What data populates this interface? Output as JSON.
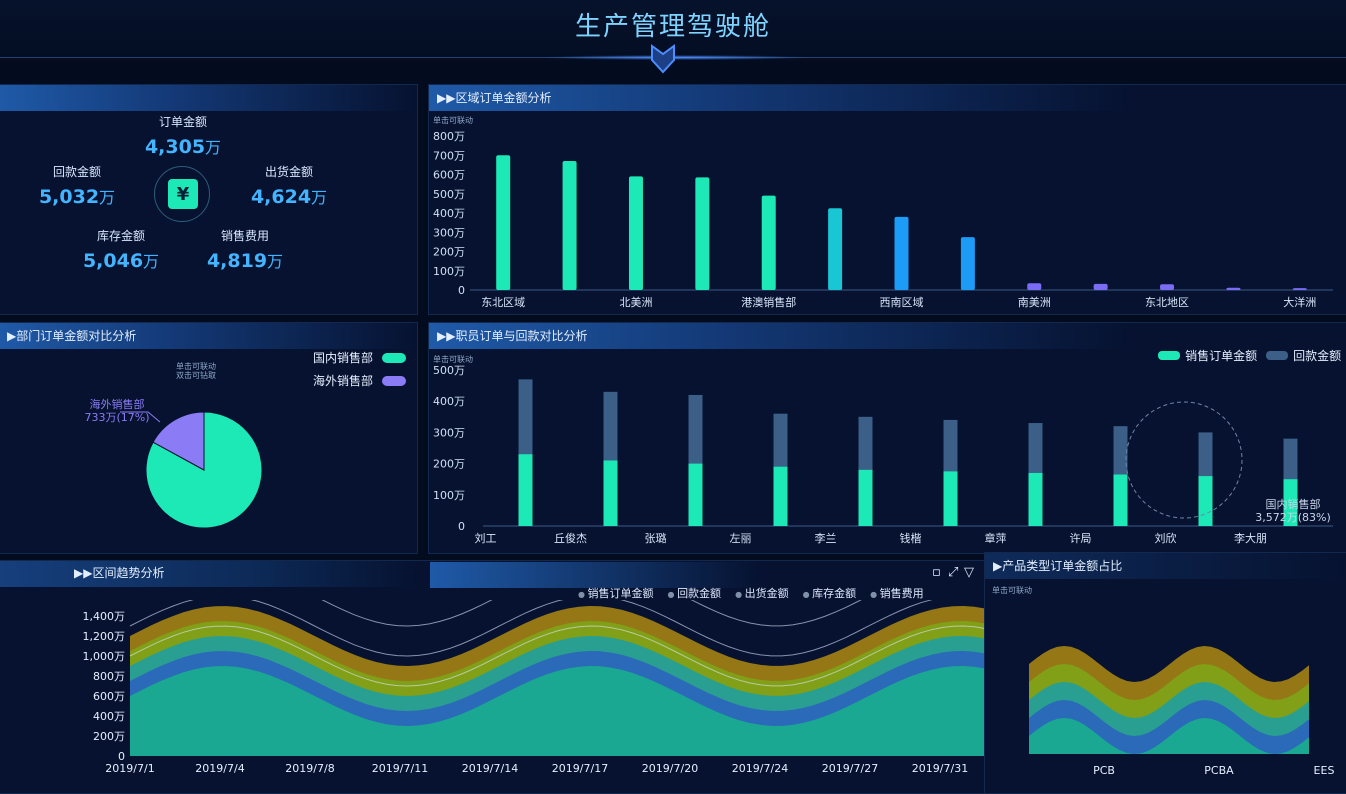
{
  "header": {
    "title": "生产管理驾驶舱"
  },
  "kpi": {
    "items": [
      {
        "label": "订单金额",
        "value": "4,305",
        "unit": "万"
      },
      {
        "label": "回款金额",
        "value": "5,032",
        "unit": "万"
      },
      {
        "label": "出货金额",
        "value": "4,624",
        "unit": "万"
      },
      {
        "label": "库存金额",
        "value": "5,046",
        "unit": "万"
      },
      {
        "label": "销售费用",
        "value": "4,819",
        "unit": "万"
      }
    ],
    "icon": "yen-wallet-icon",
    "icon_glyph": "¥"
  },
  "panels": {
    "region": {
      "title": "▶▶区域订单金额分析",
      "hint": "单击可联动"
    },
    "dept": {
      "title": "▶部门订单金额对比分析",
      "hint1": "单击可联动",
      "hint2": "双击可钻取"
    },
    "staff": {
      "title": "▶▶职员订单与回款对比分析",
      "hint": "单击可联动"
    },
    "trend": {
      "title": "▶▶区间趋势分析"
    },
    "product": {
      "title": "▶产品类型订单金额占比",
      "hint": "单击可联动"
    }
  },
  "colors": {
    "accent": "#1de9b6",
    "blue": "#1c9cf6",
    "purple": "#7b6cf6",
    "slate": "#3b5f86"
  },
  "chart_data": [
    {
      "type": "bar",
      "title": "区域订单金额分析",
      "categories": [
        "东北区域",
        "",
        "北美洲",
        "",
        "港澳销售部",
        "",
        "西南区域",
        "",
        "南美洲",
        "",
        "东北地区",
        "",
        "大洋洲"
      ],
      "values": [
        700,
        670,
        590,
        585,
        490,
        425,
        380,
        275,
        35,
        32,
        30,
        12,
        10
      ],
      "yticks": [
        "0",
        "100万",
        "200万",
        "300万",
        "400万",
        "500万",
        "600万",
        "700万",
        "800万"
      ],
      "ylim": [
        0,
        800
      ]
    },
    {
      "type": "pie",
      "title": "部门订单金额对比分析",
      "legend": [
        "国内销售部",
        "海外销售部"
      ],
      "slices": [
        {
          "name": "国内销售部",
          "value": 3572,
          "label": "3,572万(83%)"
        },
        {
          "name": "海外销售部",
          "value": 733,
          "label": "733万(17%)"
        }
      ],
      "callout_name": "海外销售部",
      "callout_value": "733万(17%)",
      "callout2_name": "国内销售部",
      "callout2_value": "3,572万(83%)"
    },
    {
      "type": "bar",
      "title": "职员订单与回款对比分析",
      "legend": [
        "销售订单金额",
        "回款金额"
      ],
      "categories": [
        "刘工",
        "丘俊杰",
        "张璐",
        "左丽",
        "李兰",
        "钱楷",
        "章萍",
        "许局",
        "刘欣",
        "李大朋"
      ],
      "series": [
        {
          "name": "销售订单金额",
          "values": [
            230,
            210,
            200,
            190,
            180,
            175,
            170,
            165,
            160,
            150
          ]
        },
        {
          "name": "回款金额",
          "values": [
            470,
            430,
            420,
            360,
            350,
            340,
            330,
            320,
            300,
            280
          ]
        }
      ],
      "yticks": [
        "0",
        "100万",
        "200万",
        "300万",
        "400万",
        "500万"
      ],
      "ylim": [
        0,
        500
      ]
    },
    {
      "type": "area",
      "title": "区间趋势分析",
      "legend": [
        "销售订单金额",
        "回款金额",
        "出货金额",
        "库存金额",
        "销售费用"
      ],
      "x": [
        "2019/7/1",
        "2019/7/4",
        "2019/7/8",
        "2019/7/11",
        "2019/7/14",
        "2019/7/17",
        "2019/7/20",
        "2019/7/24",
        "2019/7/27",
        "2019/7/31"
      ],
      "yticks": [
        "0",
        "200万",
        "400万",
        "600万",
        "800万",
        "1,000万",
        "1,200万",
        "1,400万"
      ],
      "ylim": [
        0,
        1400
      ]
    },
    {
      "type": "bar",
      "title": "产品类型订单金额占比",
      "categories": [
        "PCB",
        "PCBA",
        "EES"
      ]
    }
  ]
}
